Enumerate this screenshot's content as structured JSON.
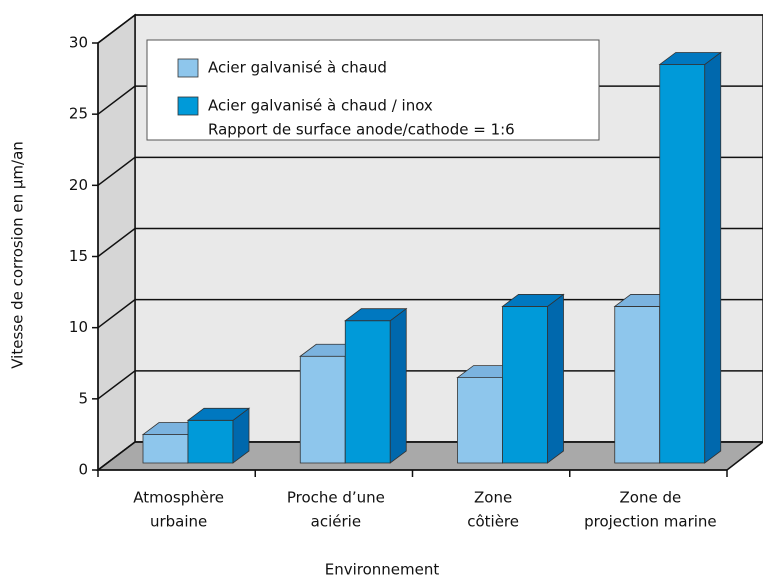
{
  "chart_data": {
    "type": "bar3d",
    "xlabel": "Environnement",
    "ylabel": "Vitesse de corrosion en µm/an",
    "categories": [
      [
        "Atmosphère",
        "urbaine"
      ],
      [
        "Proche d’une",
        "aciérie"
      ],
      [
        "Zone",
        "côtière"
      ],
      [
        "Zone de",
        "projection marine"
      ]
    ],
    "series": [
      {
        "name": "Acier galvanisé à chaud",
        "color": "#8ec6ec",
        "side_color": "#5b9fd0",
        "top_color": "#7bb3df",
        "values": [
          2,
          7.5,
          6,
          11
        ]
      },
      {
        "name": "Acier galvanisé à chaud / inox",
        "color": "#009ad9",
        "side_color": "#0068ad",
        "top_color": "#0078c0",
        "values": [
          3,
          10,
          11,
          28
        ]
      }
    ],
    "legend_note": "Rapport de surface anode/cathode = 1:6",
    "ylim": [
      0,
      30
    ],
    "yticks": [
      0,
      5,
      10,
      15,
      20,
      25,
      30
    ],
    "grid": true
  }
}
